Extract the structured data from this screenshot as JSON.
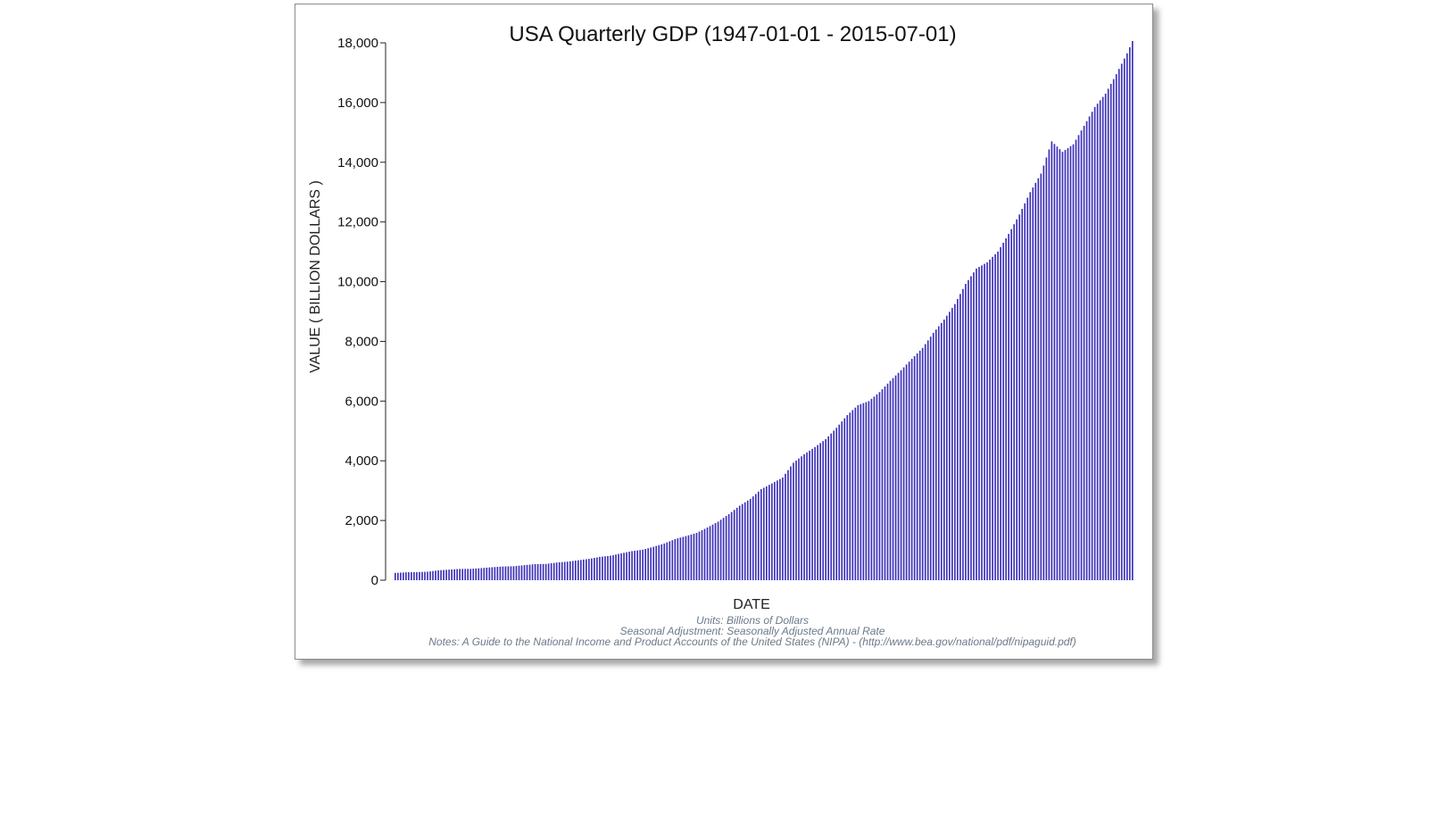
{
  "chart_data": {
    "type": "bar",
    "title": "USA Quarterly GDP (1947-01-01 - 2015-07-01)",
    "xlabel": "DATE",
    "ylabel": "VALUE ( BILLION DOLLARS )",
    "ylim": [
      0,
      18000
    ],
    "yticks": [
      0,
      2000,
      4000,
      6000,
      8000,
      10000,
      12000,
      14000,
      16000,
      18000
    ],
    "ytick_labels": [
      "0",
      "2,000",
      "4,000",
      "6,000",
      "8,000",
      "10,000",
      "12,000",
      "14,000",
      "16,000",
      "18,000"
    ],
    "grid": false,
    "bar_color": "#3b2fb8",
    "x_start": "1947-01-01",
    "x_end": "2015-07-01",
    "x_frequency": "quarterly",
    "annual_anchors": [
      [
        1947,
        244
      ],
      [
        1948,
        265
      ],
      [
        1949,
        272
      ],
      [
        1950,
        285
      ],
      [
        1951,
        330
      ],
      [
        1952,
        355
      ],
      [
        1953,
        378
      ],
      [
        1954,
        380
      ],
      [
        1955,
        405
      ],
      [
        1956,
        435
      ],
      [
        1957,
        460
      ],
      [
        1958,
        468
      ],
      [
        1959,
        505
      ],
      [
        1960,
        538
      ],
      [
        1961,
        545
      ],
      [
        1962,
        592
      ],
      [
        1963,
        622
      ],
      [
        1964,
        667
      ],
      [
        1965,
        715
      ],
      [
        1966,
        781
      ],
      [
        1967,
        822
      ],
      [
        1968,
        900
      ],
      [
        1969,
        975
      ],
      [
        1970,
        1022
      ],
      [
        1971,
        1120
      ],
      [
        1972,
        1230
      ],
      [
        1973,
        1377
      ],
      [
        1974,
        1478
      ],
      [
        1975,
        1584
      ],
      [
        1976,
        1765
      ],
      [
        1977,
        1962
      ],
      [
        1978,
        2215
      ],
      [
        1979,
        2496
      ],
      [
        1980,
        2725
      ],
      [
        1981,
        3050
      ],
      [
        1982,
        3240
      ],
      [
        1983,
        3440
      ],
      [
        1984,
        3935
      ],
      [
        1985,
        4220
      ],
      [
        1986,
        4460
      ],
      [
        1987,
        4725
      ],
      [
        1988,
        5105
      ],
      [
        1989,
        5530
      ],
      [
        1990,
        5865
      ],
      [
        1991,
        6000
      ],
      [
        1992,
        6300
      ],
      [
        1993,
        6680
      ],
      [
        1994,
        7035
      ],
      [
        1995,
        7415
      ],
      [
        1996,
        7780
      ],
      [
        1997,
        8285
      ],
      [
        1998,
        8730
      ],
      [
        1999,
        9250
      ],
      [
        2000,
        9925
      ],
      [
        2001,
        10440
      ],
      [
        2002,
        10650
      ],
      [
        2003,
        11010
      ],
      [
        2004,
        11600
      ],
      [
        2005,
        12250
      ],
      [
        2006,
        13000
      ],
      [
        2007,
        13620
      ],
      [
        2008,
        14700
      ],
      [
        2009,
        14350
      ],
      [
        2010,
        14600
      ],
      [
        2011,
        15220
      ],
      [
        2012,
        15850
      ],
      [
        2013,
        16300
      ],
      [
        2014,
        16950
      ],
      [
        2015,
        17650
      ]
    ],
    "final_value": 18060
  },
  "notes": {
    "units": "Units: Billions of Dollars",
    "seasonal": "Seasonal Adjustment: Seasonally Adjusted Annual Rate",
    "notes": "Notes: A Guide to the National Income and Product Accounts of the United States (NIPA) - (http://www.bea.gov/national/pdf/nipaguid.pdf)"
  }
}
